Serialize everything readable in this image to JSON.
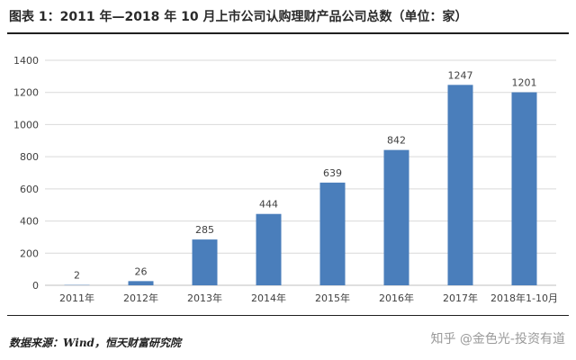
{
  "title": "图表 1：2011 年—2018 年 10 月上市公司认购理财产品公司总数（单位：家）",
  "source": "数据来源：Wind，恒天财富研究院",
  "watermark": "知乎 @金色光-投资有道",
  "colors": {
    "bar": "#4a7ebb",
    "grid": "#d9d9d9",
    "axis": "#bfbfbf",
    "text": "#404040"
  },
  "chart_data": {
    "type": "bar",
    "title": "图表 1：2011 年—2018 年 10 月上市公司认购理财产品公司总数（单位：家）",
    "xlabel": "",
    "ylabel": "",
    "categories": [
      "2011年",
      "2012年",
      "2013年",
      "2014年",
      "2015年",
      "2016年",
      "2017年",
      "2018年1-10月"
    ],
    "values": [
      2,
      26,
      285,
      444,
      639,
      842,
      1247,
      1201
    ],
    "data_labels": [
      "2",
      "26",
      "285",
      "444",
      "639",
      "842",
      "1247",
      "1201"
    ],
    "ylim": [
      0,
      1400
    ],
    "yticks": [
      0,
      200,
      400,
      600,
      800,
      1000,
      1200,
      1400
    ],
    "grid": true,
    "legend": "none"
  }
}
